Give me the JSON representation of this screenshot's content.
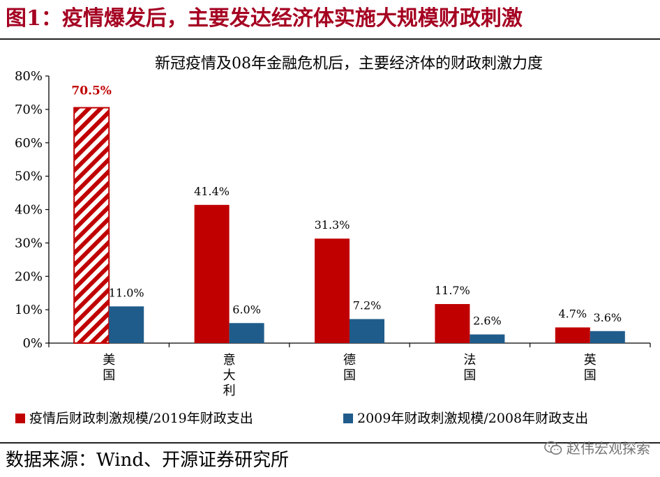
{
  "figure": {
    "title": "图1：疫情爆发后，主要发达经济体实施大规模财政刺激",
    "title_color": "#a50021",
    "source": "数据来源：Wind、开源证券研究所",
    "watermark": "赵伟宏观探索",
    "watermark_icon": "wechat-icon"
  },
  "chart_data": {
    "type": "bar",
    "title": "新冠疫情及08年金融危机后，主要经济体的财政刺激力度",
    "categories": [
      "美国",
      "意大利",
      "德国",
      "法国",
      "英国"
    ],
    "ylim": [
      0,
      80
    ],
    "yticks": [
      "0%",
      "10%",
      "20%",
      "30%",
      "40%",
      "50%",
      "60%",
      "70%",
      "80%"
    ],
    "ytick_values": [
      0,
      10,
      20,
      30,
      40,
      50,
      60,
      70,
      80
    ],
    "grid": false,
    "legend_position": "bottom",
    "highlight": {
      "series": 0,
      "index": 0,
      "style": "hatched",
      "label_color": "#c00000"
    },
    "series": [
      {
        "name": "疫情后财政刺激规模/2019年财政支出",
        "color": "#c00000",
        "values": [
          70.5,
          41.4,
          31.3,
          11.7,
          4.7
        ],
        "labels": [
          "70.5%",
          "41.4%",
          "31.3%",
          "11.7%",
          "4.7%"
        ]
      },
      {
        "name": "2009年财政刺激规模/2008年财政支出",
        "color": "#1f5c8b",
        "values": [
          11.0,
          6.0,
          7.2,
          2.6,
          3.6
        ],
        "labels": [
          "11.0%",
          "6.0%",
          "7.2%",
          "2.6%",
          "3.6%"
        ]
      }
    ]
  }
}
